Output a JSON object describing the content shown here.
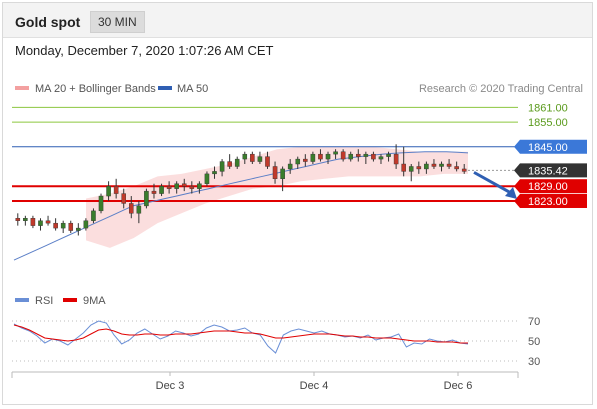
{
  "header": {
    "title": "Gold spot",
    "timeframe": "30 MIN"
  },
  "timestamp": "Monday, December 7, 2020 1:07:26 AM CET",
  "legend": {
    "bollinger_label": "MA 20 + Bollinger Bands",
    "ma50_label": "MA 50",
    "copyright": "Research © 2020 Trading Central",
    "rsi_label": "RSI",
    "rsi_ma_label": "9MA"
  },
  "colors": {
    "resistance_green": "#8cc63f",
    "ma50_blue": "#2f5fb3",
    "support_red": "#e00000",
    "bollinger": "#f3a0a0",
    "candle_up": "#3a7d2c",
    "candle_down": "#c0392b",
    "arrow": "#2f5fb3",
    "price_box": "#333333"
  },
  "chart_data": [
    {
      "type": "candlestick",
      "ylim": [
        1795,
        1866
      ],
      "x_ticks": [
        "Dec 3",
        "Dec 4",
        "Dec 6"
      ],
      "levels": [
        {
          "value": 1861.0,
          "label": "1861.00",
          "kind": "resistance"
        },
        {
          "value": 1855.0,
          "label": "1855.00",
          "kind": "resistance"
        },
        {
          "value": 1845.0,
          "label": "1845.00",
          "kind": "resistance"
        },
        {
          "value": 1835.42,
          "label": "1835.42",
          "kind": "last"
        },
        {
          "value": 1829.0,
          "label": "1829.00",
          "kind": "support"
        },
        {
          "value": 1823.0,
          "label": "1823.00",
          "kind": "support"
        }
      ],
      "ohlc": [
        [
          1816,
          1818,
          1813,
          1815
        ],
        [
          1815,
          1817,
          1813,
          1816
        ],
        [
          1816,
          1817,
          1812,
          1813
        ],
        [
          1813,
          1816,
          1811,
          1815
        ],
        [
          1815,
          1817,
          1813,
          1814
        ],
        [
          1814,
          1816,
          1811,
          1812
        ],
        [
          1812,
          1815,
          1810,
          1814
        ],
        [
          1814,
          1815,
          1810,
          1811
        ],
        [
          1811,
          1814,
          1809,
          1812
        ],
        [
          1812,
          1816,
          1811,
          1815
        ],
        [
          1815,
          1820,
          1814,
          1819
        ],
        [
          1819,
          1826,
          1818,
          1825
        ],
        [
          1825,
          1831,
          1823,
          1829
        ],
        [
          1829,
          1832,
          1824,
          1826
        ],
        [
          1826,
          1828,
          1820,
          1822
        ],
        [
          1822,
          1825,
          1816,
          1818
        ],
        [
          1818,
          1823,
          1814,
          1821
        ],
        [
          1821,
          1828,
          1820,
          1827
        ],
        [
          1827,
          1830,
          1824,
          1826
        ],
        [
          1826,
          1830,
          1825,
          1829
        ],
        [
          1829,
          1831,
          1826,
          1828
        ],
        [
          1828,
          1831,
          1826,
          1830
        ],
        [
          1830,
          1832,
          1827,
          1829
        ],
        [
          1829,
          1831,
          1826,
          1828
        ],
        [
          1828,
          1831,
          1826,
          1830
        ],
        [
          1830,
          1835,
          1829,
          1834
        ],
        [
          1834,
          1837,
          1832,
          1835
        ],
        [
          1835,
          1840,
          1833,
          1839
        ],
        [
          1839,
          1842,
          1836,
          1837
        ],
        [
          1837,
          1841,
          1836,
          1840
        ],
        [
          1840,
          1843,
          1838,
          1842
        ],
        [
          1842,
          1843,
          1838,
          1839
        ],
        [
          1839,
          1843,
          1838,
          1841
        ],
        [
          1841,
          1843,
          1836,
          1837
        ],
        [
          1837,
          1839,
          1830,
          1832
        ],
        [
          1832,
          1837,
          1827,
          1836
        ],
        [
          1836,
          1840,
          1834,
          1838
        ],
        [
          1838,
          1841,
          1836,
          1840
        ],
        [
          1840,
          1842,
          1837,
          1839
        ],
        [
          1839,
          1843,
          1838,
          1842
        ],
        [
          1842,
          1844,
          1839,
          1840
        ],
        [
          1840,
          1843,
          1838,
          1842
        ],
        [
          1842,
          1844,
          1840,
          1843
        ],
        [
          1843,
          1844,
          1839,
          1840
        ],
        [
          1840,
          1843,
          1839,
          1842
        ],
        [
          1842,
          1844,
          1839,
          1841
        ],
        [
          1841,
          1843,
          1838,
          1842
        ],
        [
          1842,
          1843,
          1839,
          1840
        ],
        [
          1840,
          1842,
          1838,
          1841
        ],
        [
          1841,
          1843,
          1839,
          1842
        ],
        [
          1842,
          1846,
          1836,
          1838
        ],
        [
          1838,
          1845,
          1833,
          1835
        ],
        [
          1835,
          1838,
          1831,
          1837
        ],
        [
          1837,
          1839,
          1834,
          1836
        ],
        [
          1836,
          1839,
          1834,
          1838
        ],
        [
          1838,
          1840,
          1836,
          1837
        ],
        [
          1837,
          1839,
          1835,
          1838
        ],
        [
          1838,
          1840,
          1836,
          1837
        ],
        [
          1837,
          1839,
          1835,
          1836
        ],
        [
          1836,
          1838,
          1834,
          1835
        ]
      ],
      "ma50": [
        1799,
        1801,
        1803,
        1805,
        1807,
        1809,
        1811,
        1813,
        1815,
        1817,
        1819,
        1821,
        1822,
        1823,
        1824,
        1825,
        1826,
        1827,
        1828,
        1829,
        1830,
        1831,
        1832,
        1833,
        1834,
        1835,
        1836,
        1837,
        1838,
        1839,
        1840,
        1840.5,
        1841,
        1841.5,
        1842,
        1842.3,
        1842.6,
        1842.8,
        1843,
        1843,
        1843,
        1842.8,
        1842.5
      ],
      "bollinger_upper": [
        1824,
        1826,
        1829,
        1833,
        1834,
        1836,
        1838,
        1841,
        1844,
        1845,
        1845,
        1845,
        1845,
        1844,
        1843,
        1843,
        1843
      ],
      "bollinger_lower": [
        1807,
        1804,
        1808,
        1814,
        1818,
        1822,
        1825,
        1828,
        1829,
        1831,
        1832,
        1833,
        1833,
        1833,
        1833,
        1834,
        1834
      ]
    },
    {
      "type": "line",
      "name": "RSI",
      "ylim": [
        25,
        75
      ],
      "levels": [
        {
          "value": 70,
          "label": "70"
        },
        {
          "value": 50,
          "label": "50"
        },
        {
          "value": 30,
          "label": "30"
        }
      ],
      "rsi": [
        67,
        63,
        60,
        55,
        48,
        52,
        50,
        46,
        52,
        58,
        66,
        70,
        68,
        56,
        47,
        51,
        58,
        62,
        57,
        52,
        55,
        60,
        58,
        55,
        57,
        63,
        66,
        64,
        60,
        61,
        63,
        58,
        56,
        45,
        38,
        56,
        60,
        62,
        60,
        58,
        60,
        57,
        56,
        54,
        55,
        53,
        56,
        51,
        53,
        54,
        57,
        44,
        48,
        47,
        52,
        50,
        49,
        51,
        48,
        47
      ],
      "rsi_ma": [
        66,
        64,
        61,
        57,
        53,
        52,
        51,
        50,
        51,
        53,
        57,
        61,
        62,
        60,
        57,
        56,
        56,
        57,
        57,
        56,
        56,
        57,
        57,
        57,
        58,
        59,
        60,
        60,
        60,
        59,
        58,
        58,
        57,
        55,
        53,
        53,
        54,
        55,
        56,
        57,
        57,
        57,
        56,
        55,
        55,
        54,
        54,
        53,
        53,
        53,
        52,
        51,
        50,
        50,
        50,
        49,
        49,
        49,
        48,
        48
      ]
    }
  ]
}
